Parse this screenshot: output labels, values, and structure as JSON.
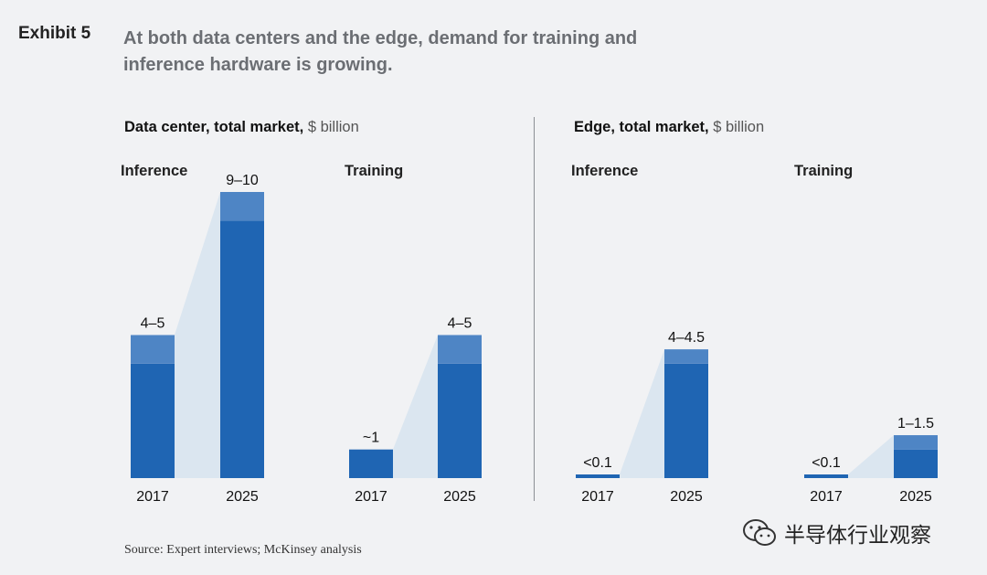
{
  "exhibit": {
    "label": "Exhibit 5",
    "title_lines": [
      "At both data centers and the edge, demand for training and",
      "inference hardware is growing."
    ]
  },
  "panels": [
    {
      "title": "Data center, total market,",
      "unit": " $ billion"
    },
    {
      "title": "Edge, total market,",
      "unit": " $ billion"
    }
  ],
  "source": "Source: Expert interviews; McKinsey analysis",
  "watermark": {
    "text": "半导体行业观察",
    "icon": "wechat-icon"
  },
  "colors": {
    "bar_dark": "#1f65b3",
    "bar_light": "#4e85c5",
    "connector": "#dbe6f0",
    "background": "#f1f2f4"
  },
  "chart_data": [
    {
      "type": "bar",
      "title": "Inference",
      "panel": "Data center, total market, $ billion",
      "categories": [
        "2017",
        "2025"
      ],
      "range_low": [
        4,
        9
      ],
      "range_high": [
        5,
        10
      ],
      "labels": [
        "4–5",
        "9–10"
      ],
      "ylim": [
        0,
        10
      ]
    },
    {
      "type": "bar",
      "title": "Training",
      "panel": "Data center, total market, $ billion",
      "categories": [
        "2017",
        "2025"
      ],
      "range_low": [
        1,
        4
      ],
      "range_high": [
        1,
        5
      ],
      "labels": [
        "~1",
        "4–5"
      ],
      "ylim": [
        0,
        10
      ]
    },
    {
      "type": "bar",
      "title": "Inference",
      "panel": "Edge, total market, $ billion",
      "categories": [
        "2017",
        "2025"
      ],
      "range_low": [
        0.1,
        4
      ],
      "range_high": [
        0.1,
        4.5
      ],
      "labels": [
        "<0.1",
        "4–4.5"
      ],
      "ylim": [
        0,
        10
      ]
    },
    {
      "type": "bar",
      "title": "Training",
      "panel": "Edge, total market, $ billion",
      "categories": [
        "2017",
        "2025"
      ],
      "range_low": [
        0.1,
        1
      ],
      "range_high": [
        0.1,
        1.5
      ],
      "labels": [
        "<0.1",
        "1–1.5"
      ],
      "ylim": [
        0,
        10
      ]
    }
  ]
}
